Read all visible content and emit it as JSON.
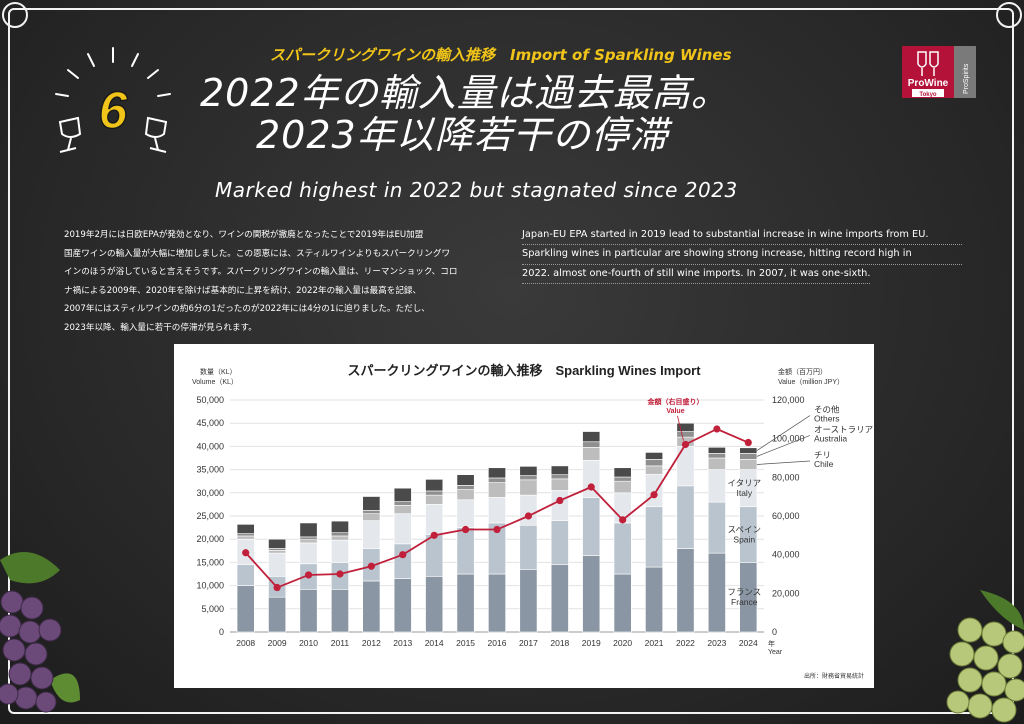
{
  "header": {
    "section_number": "6",
    "subtitle": "スパークリングワインの輸入推移　Import of Sparkling Wines",
    "title_line1": "2022年の輸入量は過去最高。",
    "title_line2": "2023年以降若干の停滞",
    "title_en": "Marked highest in 2022 but stagnated since 2023"
  },
  "logo": {
    "brand": "ProWine",
    "city": "Tokyo",
    "side": "ProSpirits",
    "color": "#b5123a"
  },
  "body": {
    "jp_lines": [
      "2019年2月には日欧EPAが発効となり、ワインの関税が撤廃となったことで2019年はEU加盟",
      "国産ワインの輸入量が大幅に増加しました。この恩恵には、スティルワインよりもスパークリングワ",
      "インのほうが浴していると言えそうです。スパークリングワインの輸入量は、リーマンショック、コロ",
      "ナ禍による2009年、2020年を除けば基本的に上昇を続け、2022年の輸入量は最高を記録、",
      "2007年にはスティルワインの約6分の1だったのが2022年には4分の1に迫りました。ただし、",
      "2023年以降、輸入量に若干の停滞が見られます。"
    ],
    "en_lines": [
      "Japan-EU EPA started in 2019 lead to substantial increase in wine imports from EU.",
      "Sparkling wines in particular are showing strong increase, hitting record high in",
      "2022. almost one-fourth of still wine imports. In 2007, it was one-sixth."
    ]
  },
  "chart_data": {
    "type": "bar",
    "title": "スパークリングワインの輸入推移　Sparkling Wines Import",
    "ylabel_left": [
      "数量（KL）",
      "Volume（KL）"
    ],
    "ylabel_right": [
      "金額（百万円）",
      "Value（million JPY）"
    ],
    "xlabel": [
      "年",
      "Year"
    ],
    "ylim_left": [
      0,
      50000
    ],
    "ylim_right": [
      0,
      120000
    ],
    "yticks_left": [
      0,
      5000,
      10000,
      15000,
      20000,
      25000,
      30000,
      35000,
      40000,
      45000,
      50000
    ],
    "yticks_left_labels": [
      "0",
      "5,000",
      "10,000",
      "15,000",
      "20,000",
      "25,000",
      "30,000",
      "35,000",
      "40,000",
      "45,000",
      "50,000"
    ],
    "yticks_right": [
      0,
      20000,
      40000,
      60000,
      80000,
      100000,
      120000
    ],
    "yticks_right_labels": [
      "0",
      "20,000",
      "40,000",
      "60,000",
      "80,000",
      "100,000",
      "120,000"
    ],
    "categories": [
      "2008",
      "2009",
      "2010",
      "2011",
      "2012",
      "2013",
      "2014",
      "2015",
      "2016",
      "2017",
      "2018",
      "2019",
      "2020",
      "2021",
      "2022",
      "2023",
      "2024"
    ],
    "stacked": true,
    "series": [
      {
        "name": "フランス France",
        "color": "#8a96a3",
        "values": [
          10000,
          7500,
          9200,
          9200,
          11000,
          11500,
          12000,
          12500,
          12500,
          13500,
          14500,
          16500,
          12500,
          14000,
          18000,
          17000,
          15000
        ]
      },
      {
        "name": "スペイン Spain",
        "color": "#b9c4ce",
        "values": [
          4500,
          4500,
          5500,
          5800,
          7000,
          7500,
          9000,
          10000,
          11000,
          9500,
          9500,
          12500,
          11000,
          13000,
          13500,
          11000,
          12000
        ]
      },
      {
        "name": "イタリア Italy",
        "color": "#e4e8ec",
        "values": [
          5500,
          5000,
          4500,
          4800,
          6000,
          6500,
          6500,
          6000,
          5500,
          6500,
          6500,
          8000,
          6500,
          7000,
          8500,
          7000,
          8000
        ]
      },
      {
        "name": "チリ Chile",
        "color": "#bdbdbd",
        "values": [
          700,
          600,
          700,
          900,
          1500,
          1800,
          2000,
          2200,
          3200,
          3300,
          2500,
          2800,
          2500,
          1800,
          2000,
          2500,
          2200
        ]
      },
      {
        "name": "オーストラリア Australia",
        "color": "#8f8f8f",
        "values": [
          500,
          400,
          600,
          700,
          700,
          800,
          900,
          900,
          1000,
          900,
          900,
          1200,
          900,
          1400,
          1200,
          1000,
          1300
        ]
      },
      {
        "name": "その他 Others",
        "color": "#4a4a4a",
        "values": [
          2000,
          2000,
          3000,
          2500,
          3000,
          2900,
          2500,
          2300,
          2200,
          2000,
          1900,
          2200,
          2000,
          1500,
          1800,
          1300,
          1200
        ]
      }
    ],
    "line": {
      "name": "金額（右目盛り） Value",
      "color": "#c0203a",
      "values": [
        41000,
        23000,
        29500,
        30000,
        34000,
        40000,
        50000,
        53000,
        53000,
        60000,
        68000,
        75000,
        58000,
        71000,
        97000,
        105000,
        98000
      ]
    },
    "source": "出所：財務省貿易統計"
  }
}
